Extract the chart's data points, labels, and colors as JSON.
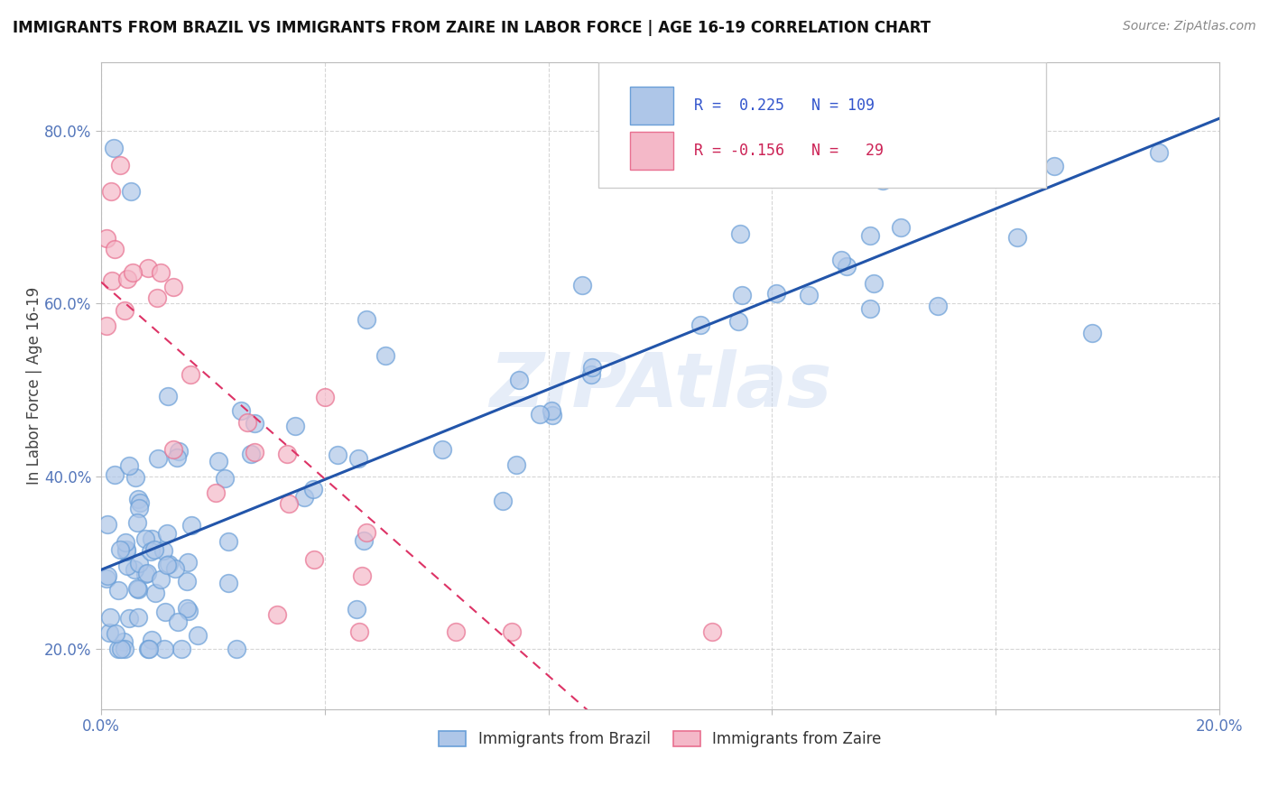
{
  "title": "IMMIGRANTS FROM BRAZIL VS IMMIGRANTS FROM ZAIRE IN LABOR FORCE | AGE 16-19 CORRELATION CHART",
  "source": "Source: ZipAtlas.com",
  "ylabel": "In Labor Force | Age 16-19",
  "xlim": [
    0.0,
    0.2
  ],
  "ylim": [
    0.13,
    0.88
  ],
  "y_ticks": [
    0.2,
    0.4,
    0.6,
    0.8
  ],
  "y_tick_labels": [
    "20.0%",
    "40.0%",
    "60.0%",
    "80.0%"
  ],
  "x_ticks": [
    0.0,
    0.04,
    0.08,
    0.12,
    0.16,
    0.2
  ],
  "x_tick_labels": [
    "0.0%",
    "",
    "",
    "",
    "",
    "20.0%"
  ],
  "brazil_color": "#aec6e8",
  "zaire_color": "#f4b8c8",
  "brazil_edge": "#6a9fd8",
  "zaire_edge": "#e87090",
  "brazil_line_color": "#2255aa",
  "zaire_line_color": "#dd3366",
  "brazil_R": 0.225,
  "brazil_N": 109,
  "zaire_R": -0.156,
  "zaire_N": 29,
  "watermark": "ZIPAtlas",
  "background_color": "#ffffff",
  "grid_color": "#cccccc",
  "tick_color": "#5577bb",
  "title_color": "#111111",
  "source_color": "#888888"
}
